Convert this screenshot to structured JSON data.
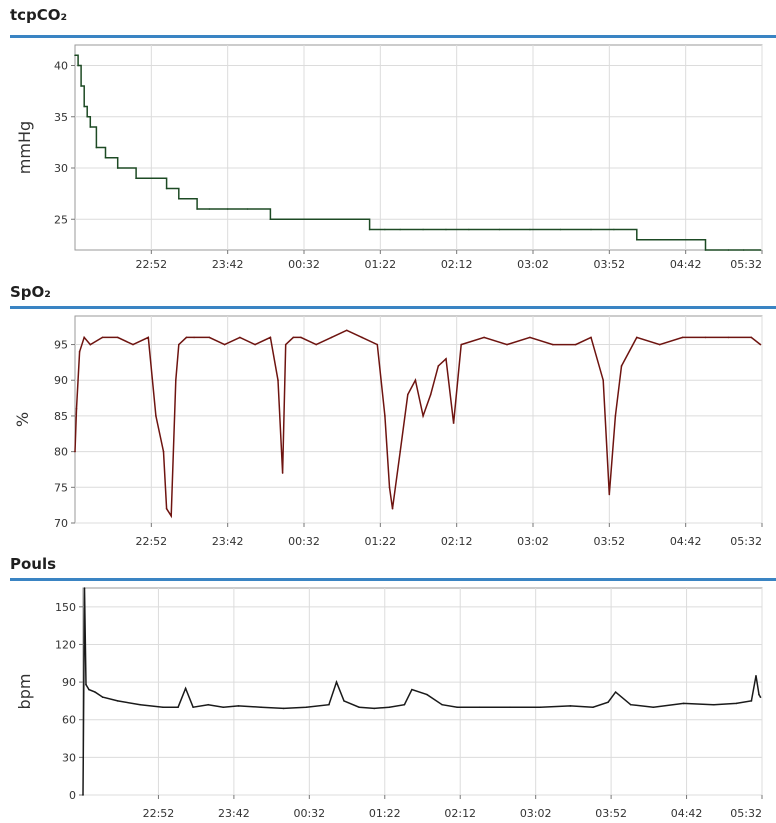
{
  "chart_data": [
    {
      "type": "line",
      "title": "tcpCO₂",
      "ylabel": "mmHg",
      "ylim": [
        22,
        42
      ],
      "yticks": [
        25,
        30,
        35,
        40
      ],
      "xlim": [
        "22:02",
        "05:32"
      ],
      "xticks": [
        "22:52",
        "23:42",
        "00:32",
        "01:22",
        "02:12",
        "03:02",
        "03:52",
        "04:42",
        "05:32"
      ],
      "grid": true,
      "color": "#1d4a24",
      "series": [
        {
          "x": [
            "22:02",
            "22:04",
            "22:06",
            "22:08",
            "22:10",
            "22:12",
            "22:16",
            "22:22",
            "22:30",
            "22:42",
            "22:52",
            "23:02",
            "23:10",
            "23:22",
            "23:30",
            "23:42",
            "23:55",
            "00:10",
            "00:25",
            "00:40",
            "00:55",
            "01:05",
            "01:15",
            "01:25",
            "01:35",
            "01:50",
            "02:05",
            "02:20",
            "02:40",
            "03:00",
            "03:20",
            "03:40",
            "03:55",
            "04:10",
            "04:25",
            "04:42",
            "04:55",
            "05:10",
            "05:20",
            "05:31"
          ],
          "y": [
            41,
            40,
            38,
            36,
            35,
            34,
            32,
            31,
            30,
            29,
            29,
            28,
            27,
            26,
            26,
            26,
            26,
            25,
            25,
            25,
            25,
            25,
            24,
            24,
            24,
            24,
            24,
            24,
            24,
            24,
            24,
            24,
            24,
            23,
            23,
            23,
            22,
            22,
            22,
            22
          ]
        }
      ]
    },
    {
      "type": "line",
      "title": "SpO₂",
      "ylabel": "%",
      "ylim": [
        70,
        99
      ],
      "yticks": [
        70,
        75,
        80,
        85,
        90,
        95
      ],
      "xlim": [
        "22:02",
        "05:32"
      ],
      "xticks": [
        "22:52",
        "23:42",
        "00:32",
        "01:22",
        "02:12",
        "03:02",
        "03:52",
        "04:42",
        "05:32"
      ],
      "grid": true,
      "color": "#6e1410",
      "series": [
        {
          "x": [
            "22:02",
            "22:03",
            "22:05",
            "22:08",
            "22:12",
            "22:20",
            "22:30",
            "22:40",
            "22:50",
            "22:55",
            "23:00",
            "23:02",
            "23:05",
            "23:08",
            "23:10",
            "23:15",
            "23:20",
            "23:30",
            "23:40",
            "23:50",
            "24:00",
            "00:10",
            "00:15",
            "00:18",
            "00:20",
            "00:25",
            "00:30",
            "00:40",
            "00:50",
            "01:00",
            "01:10",
            "01:20",
            "01:25",
            "01:28",
            "01:30",
            "01:35",
            "01:40",
            "01:45",
            "01:50",
            "01:55",
            "02:00",
            "02:05",
            "02:10",
            "02:15",
            "02:30",
            "02:45",
            "03:00",
            "03:15",
            "03:30",
            "03:40",
            "03:48",
            "03:52",
            "03:56",
            "04:00",
            "04:10",
            "04:25",
            "04:40",
            "04:55",
            "05:10",
            "05:25",
            "05:31"
          ],
          "y": [
            80,
            86,
            94,
            96,
            95,
            96,
            96,
            95,
            96,
            85,
            80,
            72,
            71,
            90,
            95,
            96,
            96,
            96,
            95,
            96,
            95,
            96,
            90,
            77,
            95,
            96,
            96,
            95,
            96,
            97,
            96,
            95,
            85,
            75,
            72,
            80,
            88,
            90,
            85,
            88,
            92,
            93,
            84,
            95,
            96,
            95,
            96,
            95,
            95,
            96,
            90,
            74,
            85,
            92,
            96,
            95,
            96,
            96,
            96,
            96,
            95
          ]
        }
      ]
    },
    {
      "type": "line",
      "title": "Pouls",
      "ylabel": "bpm",
      "ylim": [
        0,
        165
      ],
      "yticks": [
        0,
        30,
        60,
        90,
        120,
        150
      ],
      "xlim": [
        "22:02",
        "05:32"
      ],
      "xticks": [
        "22:52",
        "23:42",
        "00:32",
        "01:22",
        "02:12",
        "03:02",
        "03:52",
        "04:42",
        "05:32"
      ],
      "grid": true,
      "color": "#1a1a1a",
      "series": [
        {
          "x": [
            "22:02",
            "22:03",
            "22:04",
            "22:06",
            "22:10",
            "22:15",
            "22:25",
            "22:40",
            "22:55",
            "23:05",
            "23:10",
            "23:15",
            "23:25",
            "23:35",
            "23:45",
            "24:00",
            "00:15",
            "00:30",
            "00:45",
            "00:50",
            "00:55",
            "01:05",
            "01:15",
            "01:25",
            "01:35",
            "01:40",
            "01:50",
            "02:00",
            "02:10",
            "02:25",
            "02:45",
            "03:05",
            "03:25",
            "03:40",
            "03:50",
            "03:55",
            "04:05",
            "04:20",
            "04:40",
            "05:00",
            "05:15",
            "05:25",
            "05:28",
            "05:30",
            "05:31"
          ],
          "y": [
            0,
            165,
            88,
            84,
            82,
            78,
            75,
            72,
            70,
            70,
            85,
            70,
            72,
            70,
            71,
            70,
            69,
            70,
            72,
            90,
            75,
            70,
            69,
            70,
            72,
            84,
            80,
            72,
            70,
            70,
            70,
            70,
            71,
            70,
            74,
            82,
            72,
            70,
            73,
            72,
            73,
            75,
            95,
            80,
            78
          ]
        }
      ]
    }
  ]
}
